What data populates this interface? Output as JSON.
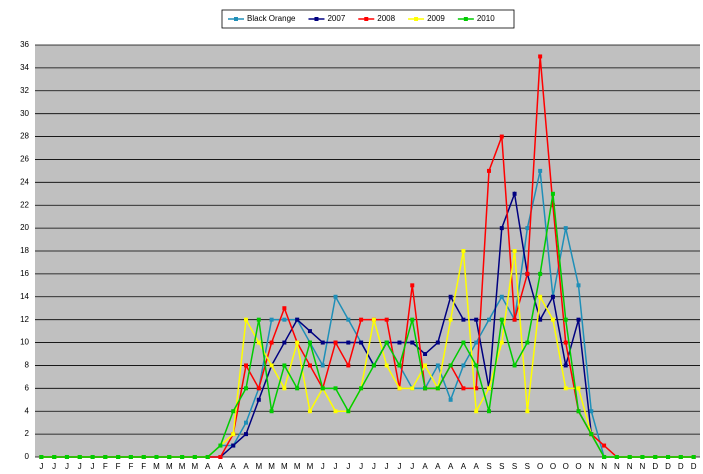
{
  "chart_data": {
    "type": "line",
    "categories": [
      "J",
      "J",
      "J",
      "J",
      "J",
      "F",
      "F",
      "F",
      "F",
      "M",
      "M",
      "M",
      "M",
      "A",
      "A",
      "A",
      "A",
      "M",
      "M",
      "M",
      "M",
      "M",
      "J",
      "J",
      "J",
      "J",
      "J",
      "J",
      "J",
      "J",
      "A",
      "A",
      "A",
      "A",
      "A",
      "S",
      "S",
      "S",
      "S",
      "O",
      "O",
      "O",
      "O",
      "N",
      "N",
      "N",
      "N",
      "N",
      "D",
      "D",
      "D",
      "D"
    ],
    "series": [
      {
        "name": "Black Orange",
        "color": "#1f8fb8",
        "values": [
          0,
          0,
          0,
          0,
          0,
          0,
          0,
          0,
          0,
          0,
          0,
          0,
          0,
          0,
          1,
          1,
          3,
          6,
          12,
          12,
          12,
          10,
          8,
          14,
          12,
          10,
          8,
          10,
          8,
          6,
          6,
          8,
          5,
          8,
          10,
          12,
          14,
          12,
          20,
          25,
          14,
          20,
          15,
          4,
          0,
          0,
          0,
          0,
          0,
          0,
          0,
          0
        ]
      },
      {
        "name": "2007",
        "color": "#000080",
        "values": [
          0,
          0,
          0,
          0,
          0,
          0,
          0,
          0,
          0,
          0,
          0,
          0,
          0,
          0,
          0,
          1,
          2,
          5,
          8,
          10,
          12,
          11,
          10,
          10,
          10,
          10,
          8,
          10,
          10,
          10,
          9,
          10,
          14,
          12,
          12,
          6,
          20,
          23,
          16,
          12,
          14,
          8,
          12,
          2,
          0,
          0,
          0,
          0,
          0,
          0,
          0,
          0
        ]
      },
      {
        "name": "2008",
        "color": "#ff0000",
        "values": [
          0,
          0,
          0,
          0,
          0,
          0,
          0,
          0,
          0,
          0,
          0,
          0,
          0,
          0,
          0,
          2,
          8,
          6,
          10,
          13,
          10,
          8,
          6,
          10,
          8,
          12,
          12,
          12,
          6,
          15,
          6,
          6,
          8,
          6,
          6,
          25,
          28,
          12,
          16,
          35,
          22,
          10,
          4,
          2,
          1,
          0,
          0,
          0,
          0,
          0,
          0,
          0
        ]
      },
      {
        "name": "2009",
        "color": "#ffff00",
        "values": [
          0,
          0,
          0,
          0,
          0,
          0,
          0,
          0,
          0,
          0,
          0,
          0,
          0,
          0,
          1,
          2,
          12,
          10,
          8,
          6,
          10,
          4,
          6,
          4,
          4,
          6,
          12,
          8,
          6,
          6,
          8,
          6,
          12,
          18,
          4,
          6,
          10,
          18,
          4,
          14,
          12,
          6,
          6,
          2,
          0,
          0,
          0,
          0,
          0,
          0,
          0,
          0
        ]
      },
      {
        "name": "2010",
        "color": "#00cc00",
        "values": [
          0,
          0,
          0,
          0,
          0,
          0,
          0,
          0,
          0,
          0,
          0,
          0,
          0,
          0,
          1,
          4,
          6,
          12,
          4,
          8,
          6,
          10,
          6,
          6,
          4,
          6,
          8,
          10,
          8,
          12,
          6,
          6,
          8,
          10,
          8,
          4,
          12,
          8,
          10,
          16,
          23,
          12,
          4,
          2,
          0,
          0,
          0,
          0,
          0,
          0,
          0,
          0
        ]
      }
    ],
    "ylim": [
      0,
      36
    ],
    "yticks": [
      0,
      2,
      4,
      6,
      8,
      10,
      12,
      14,
      16,
      18,
      20,
      22,
      24,
      26,
      28,
      30,
      32,
      34,
      36
    ],
    "grid": true
  }
}
